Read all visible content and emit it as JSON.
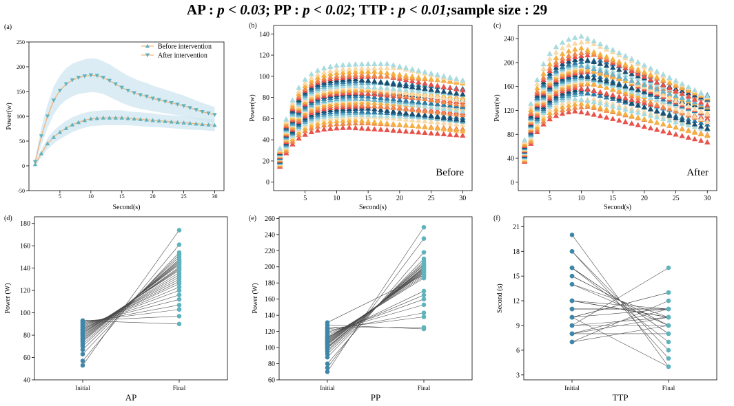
{
  "figure": {
    "title_parts": [
      {
        "text": "AP : ",
        "italic": false
      },
      {
        "text": "p < 0.03",
        "italic": true
      },
      {
        "text": "; PP : ",
        "italic": false
      },
      {
        "text": "p < 0.02",
        "italic": true
      },
      {
        "text": "; TTP : ",
        "italic": false
      },
      {
        "text": "p < 0.01;",
        "italic": true
      },
      {
        "text": "sample size : 29",
        "italic": false
      }
    ]
  },
  "chart_data": [
    {
      "id": "a",
      "panel_label": "(a)",
      "type": "line",
      "xlabel": "Second(s)",
      "ylabel": "Power(w)",
      "xlim": [
        0,
        31.5
      ],
      "ylim": [
        -50,
        250
      ],
      "xticks": [
        5,
        10,
        15,
        20,
        25,
        30
      ],
      "yticks": [
        -50,
        0,
        50,
        100,
        150,
        200,
        250
      ],
      "x": [
        1,
        2,
        3,
        4,
        5,
        6,
        7,
        8,
        9,
        10,
        11,
        12,
        13,
        14,
        15,
        16,
        17,
        18,
        19,
        20,
        21,
        22,
        23,
        24,
        25,
        26,
        27,
        28,
        29,
        30
      ],
      "series": [
        {
          "name": "Before intervention",
          "marker": "triangle-up",
          "color": "#5fb3bd",
          "line_color": "#f0b27a",
          "values": [
            3,
            25,
            45,
            58,
            68,
            76,
            83,
            88,
            92,
            95,
            96,
            97,
            97,
            97,
            97,
            96,
            95,
            94,
            93,
            92,
            91,
            90,
            89,
            88,
            87,
            86,
            85,
            84,
            83,
            82
          ],
          "band_half_width": [
            4,
            8,
            11,
            13,
            14,
            15,
            15,
            15,
            15,
            15,
            15,
            15,
            15,
            15,
            15,
            14,
            14,
            14,
            14,
            14,
            13,
            13,
            13,
            13,
            13,
            13,
            12,
            12,
            12,
            12
          ]
        },
        {
          "name": "After intervention",
          "marker": "triangle-down",
          "color": "#5fb3bd",
          "line_color": "#f0b27a",
          "values": [
            8,
            60,
            100,
            132,
            152,
            165,
            173,
            178,
            181,
            183,
            182,
            178,
            172,
            165,
            158,
            152,
            147,
            143,
            140,
            136,
            133,
            130,
            127,
            124,
            121,
            117,
            113,
            109,
            106,
            103
          ],
          "band_half_width": [
            6,
            18,
            24,
            28,
            30,
            32,
            33,
            33,
            34,
            34,
            34,
            33,
            33,
            32,
            31,
            30,
            29,
            28,
            27,
            26,
            25,
            24,
            23,
            22,
            21,
            20,
            19,
            18,
            17,
            16
          ]
        }
      ]
    },
    {
      "id": "b",
      "panel_label": "(b)",
      "type": "scatter",
      "annotation": "Before",
      "xlabel": "Second(s)",
      "ylabel": "Power(w)",
      "xlim": [
        0,
        31.5
      ],
      "ylim": [
        -8,
        148
      ],
      "xticks": [
        5,
        10,
        15,
        20,
        25,
        30
      ],
      "yticks": [
        0,
        20,
        40,
        60,
        80,
        100,
        120,
        140
      ],
      "palette": [
        "#e8524a",
        "#f08a4b",
        "#f5b041",
        "#f9d9a8",
        "#a8dbe0",
        "#6bb3c9",
        "#2f7ba6",
        "#1b4f72"
      ],
      "x": [
        1,
        2,
        3,
        4,
        5,
        6,
        7,
        8,
        9,
        10,
        11,
        12,
        13,
        14,
        15,
        16,
        17,
        18,
        19,
        20,
        21,
        22,
        23,
        24,
        25,
        26,
        27,
        28,
        29,
        30
      ],
      "plateaus": [
        52,
        56,
        59,
        62,
        64,
        66,
        68,
        70,
        72,
        74,
        76,
        78,
        79,
        80,
        82,
        84,
        85,
        87,
        88,
        90,
        92,
        94,
        96,
        98,
        100,
        102,
        105,
        108,
        112
      ],
      "peak_times": [
        12,
        15,
        13,
        16,
        14,
        18,
        12,
        15,
        17,
        13,
        14,
        16,
        15,
        12,
        14,
        19,
        13,
        15,
        16,
        14,
        12,
        17,
        15,
        13,
        18,
        14,
        16,
        20,
        18
      ],
      "end_fraction": [
        0.85,
        0.9,
        0.82,
        0.88,
        0.93,
        0.87,
        0.9,
        0.84,
        0.91,
        0.86,
        0.92,
        0.88,
        0.85,
        0.9,
        0.87,
        0.93,
        0.89,
        0.84,
        0.91,
        0.86,
        0.9,
        0.88,
        0.92,
        0.85,
        0.87,
        0.93,
        0.89,
        0.88,
        0.86
      ]
    },
    {
      "id": "c",
      "panel_label": "(c)",
      "type": "scatter",
      "annotation": "After",
      "xlabel": "Second(s)",
      "ylabel": "Power(w)",
      "xlim": [
        0,
        31.5
      ],
      "ylim": [
        -14,
        262
      ],
      "xticks": [
        5,
        10,
        15,
        20,
        25,
        30
      ],
      "yticks": [
        0,
        40,
        80,
        120,
        160,
        200,
        240
      ],
      "palette": [
        "#e8524a",
        "#f08a4b",
        "#f5b041",
        "#f9d9a8",
        "#a8dbe0",
        "#6bb3c9",
        "#2f7ba6",
        "#1b4f72"
      ],
      "x": [
        1,
        2,
        3,
        4,
        5,
        6,
        7,
        8,
        9,
        10,
        11,
        12,
        13,
        14,
        15,
        16,
        17,
        18,
        19,
        20,
        21,
        22,
        23,
        24,
        25,
        26,
        27,
        28,
        29,
        30
      ],
      "plateaus": [
        122,
        128,
        134,
        140,
        146,
        150,
        154,
        158,
        162,
        166,
        170,
        172,
        175,
        178,
        181,
        184,
        187,
        190,
        193,
        196,
        199,
        202,
        205,
        210,
        215,
        220,
        228,
        238,
        248
      ],
      "peak_times": [
        9,
        11,
        10,
        12,
        8,
        13,
        10,
        11,
        9,
        12,
        10,
        14,
        11,
        10,
        12,
        9,
        13,
        11,
        10,
        12,
        11,
        9,
        13,
        10,
        12,
        11,
        10,
        11,
        10
      ],
      "end_fraction": [
        0.55,
        0.62,
        0.58,
        0.65,
        0.6,
        0.7,
        0.63,
        0.57,
        0.66,
        0.61,
        0.68,
        0.59,
        0.64,
        0.7,
        0.62,
        0.67,
        0.6,
        0.72,
        0.65,
        0.58,
        0.69,
        0.63,
        0.71,
        0.66,
        0.6,
        0.64,
        0.62,
        0.6,
        0.58
      ]
    },
    {
      "id": "d",
      "panel_label": "(d)",
      "type": "paired",
      "xlabel": "AP",
      "ylabel": "Power (W)",
      "categories": [
        "Initial",
        "Final"
      ],
      "ylim": [
        40,
        186
      ],
      "yticks": [
        40,
        60,
        80,
        100,
        120,
        140,
        160,
        180
      ],
      "initial": [
        53,
        57,
        63,
        67,
        70,
        72,
        74,
        75,
        76,
        77,
        78,
        79,
        80,
        81,
        82,
        82,
        83,
        84,
        85,
        85,
        86,
        87,
        88,
        89,
        90,
        91,
        92,
        93,
        93
      ],
      "final": [
        174,
        161,
        154,
        152,
        150,
        148,
        147,
        146,
        145,
        144,
        143,
        141,
        140,
        139,
        138,
        136,
        134,
        132,
        130,
        128,
        126,
        123,
        120,
        116,
        112,
        107,
        103,
        97,
        90
      ]
    },
    {
      "id": "e",
      "panel_label": "(e)",
      "type": "paired",
      "xlabel": "PP",
      "ylabel": "Power (W)",
      "categories": [
        "Initial",
        "Final"
      ],
      "ylim": [
        60,
        262
      ],
      "yticks": [
        60,
        80,
        100,
        120,
        140,
        160,
        180,
        200,
        220,
        240,
        260
      ],
      "initial": [
        70,
        75,
        80,
        88,
        92,
        95,
        97,
        99,
        100,
        101,
        103,
        104,
        105,
        106,
        107,
        108,
        109,
        110,
        111,
        112,
        113,
        115,
        117,
        119,
        121,
        123,
        125,
        128,
        131
      ],
      "final": [
        249,
        235,
        218,
        210,
        207,
        205,
        203,
        202,
        200,
        199,
        198,
        197,
        196,
        195,
        194,
        193,
        192,
        190,
        188,
        186,
        170,
        165,
        160,
        153,
        143,
        138,
        125,
        123,
        190
      ]
    },
    {
      "id": "f",
      "panel_label": "(f)",
      "type": "paired",
      "xlabel": "TTP",
      "ylabel": "Second (s)",
      "categories": [
        "Initial",
        "Final"
      ],
      "ylim": [
        2.4,
        22.2
      ],
      "yticks": [
        3,
        6,
        9,
        12,
        15,
        18,
        21
      ],
      "initial": [
        20,
        18,
        18,
        16,
        16,
        15,
        15,
        14,
        14,
        12,
        12,
        12,
        11,
        11,
        11,
        10,
        10,
        10,
        9,
        9,
        9,
        8,
        8,
        8,
        7,
        7,
        16,
        12,
        10
      ],
      "final": [
        4,
        5,
        6,
        7,
        8,
        9,
        9,
        9,
        10,
        10,
        10,
        10,
        11,
        11,
        11,
        11,
        13,
        13,
        16,
        10,
        9,
        8,
        11,
        10,
        9,
        12,
        8,
        11,
        4
      ]
    }
  ]
}
